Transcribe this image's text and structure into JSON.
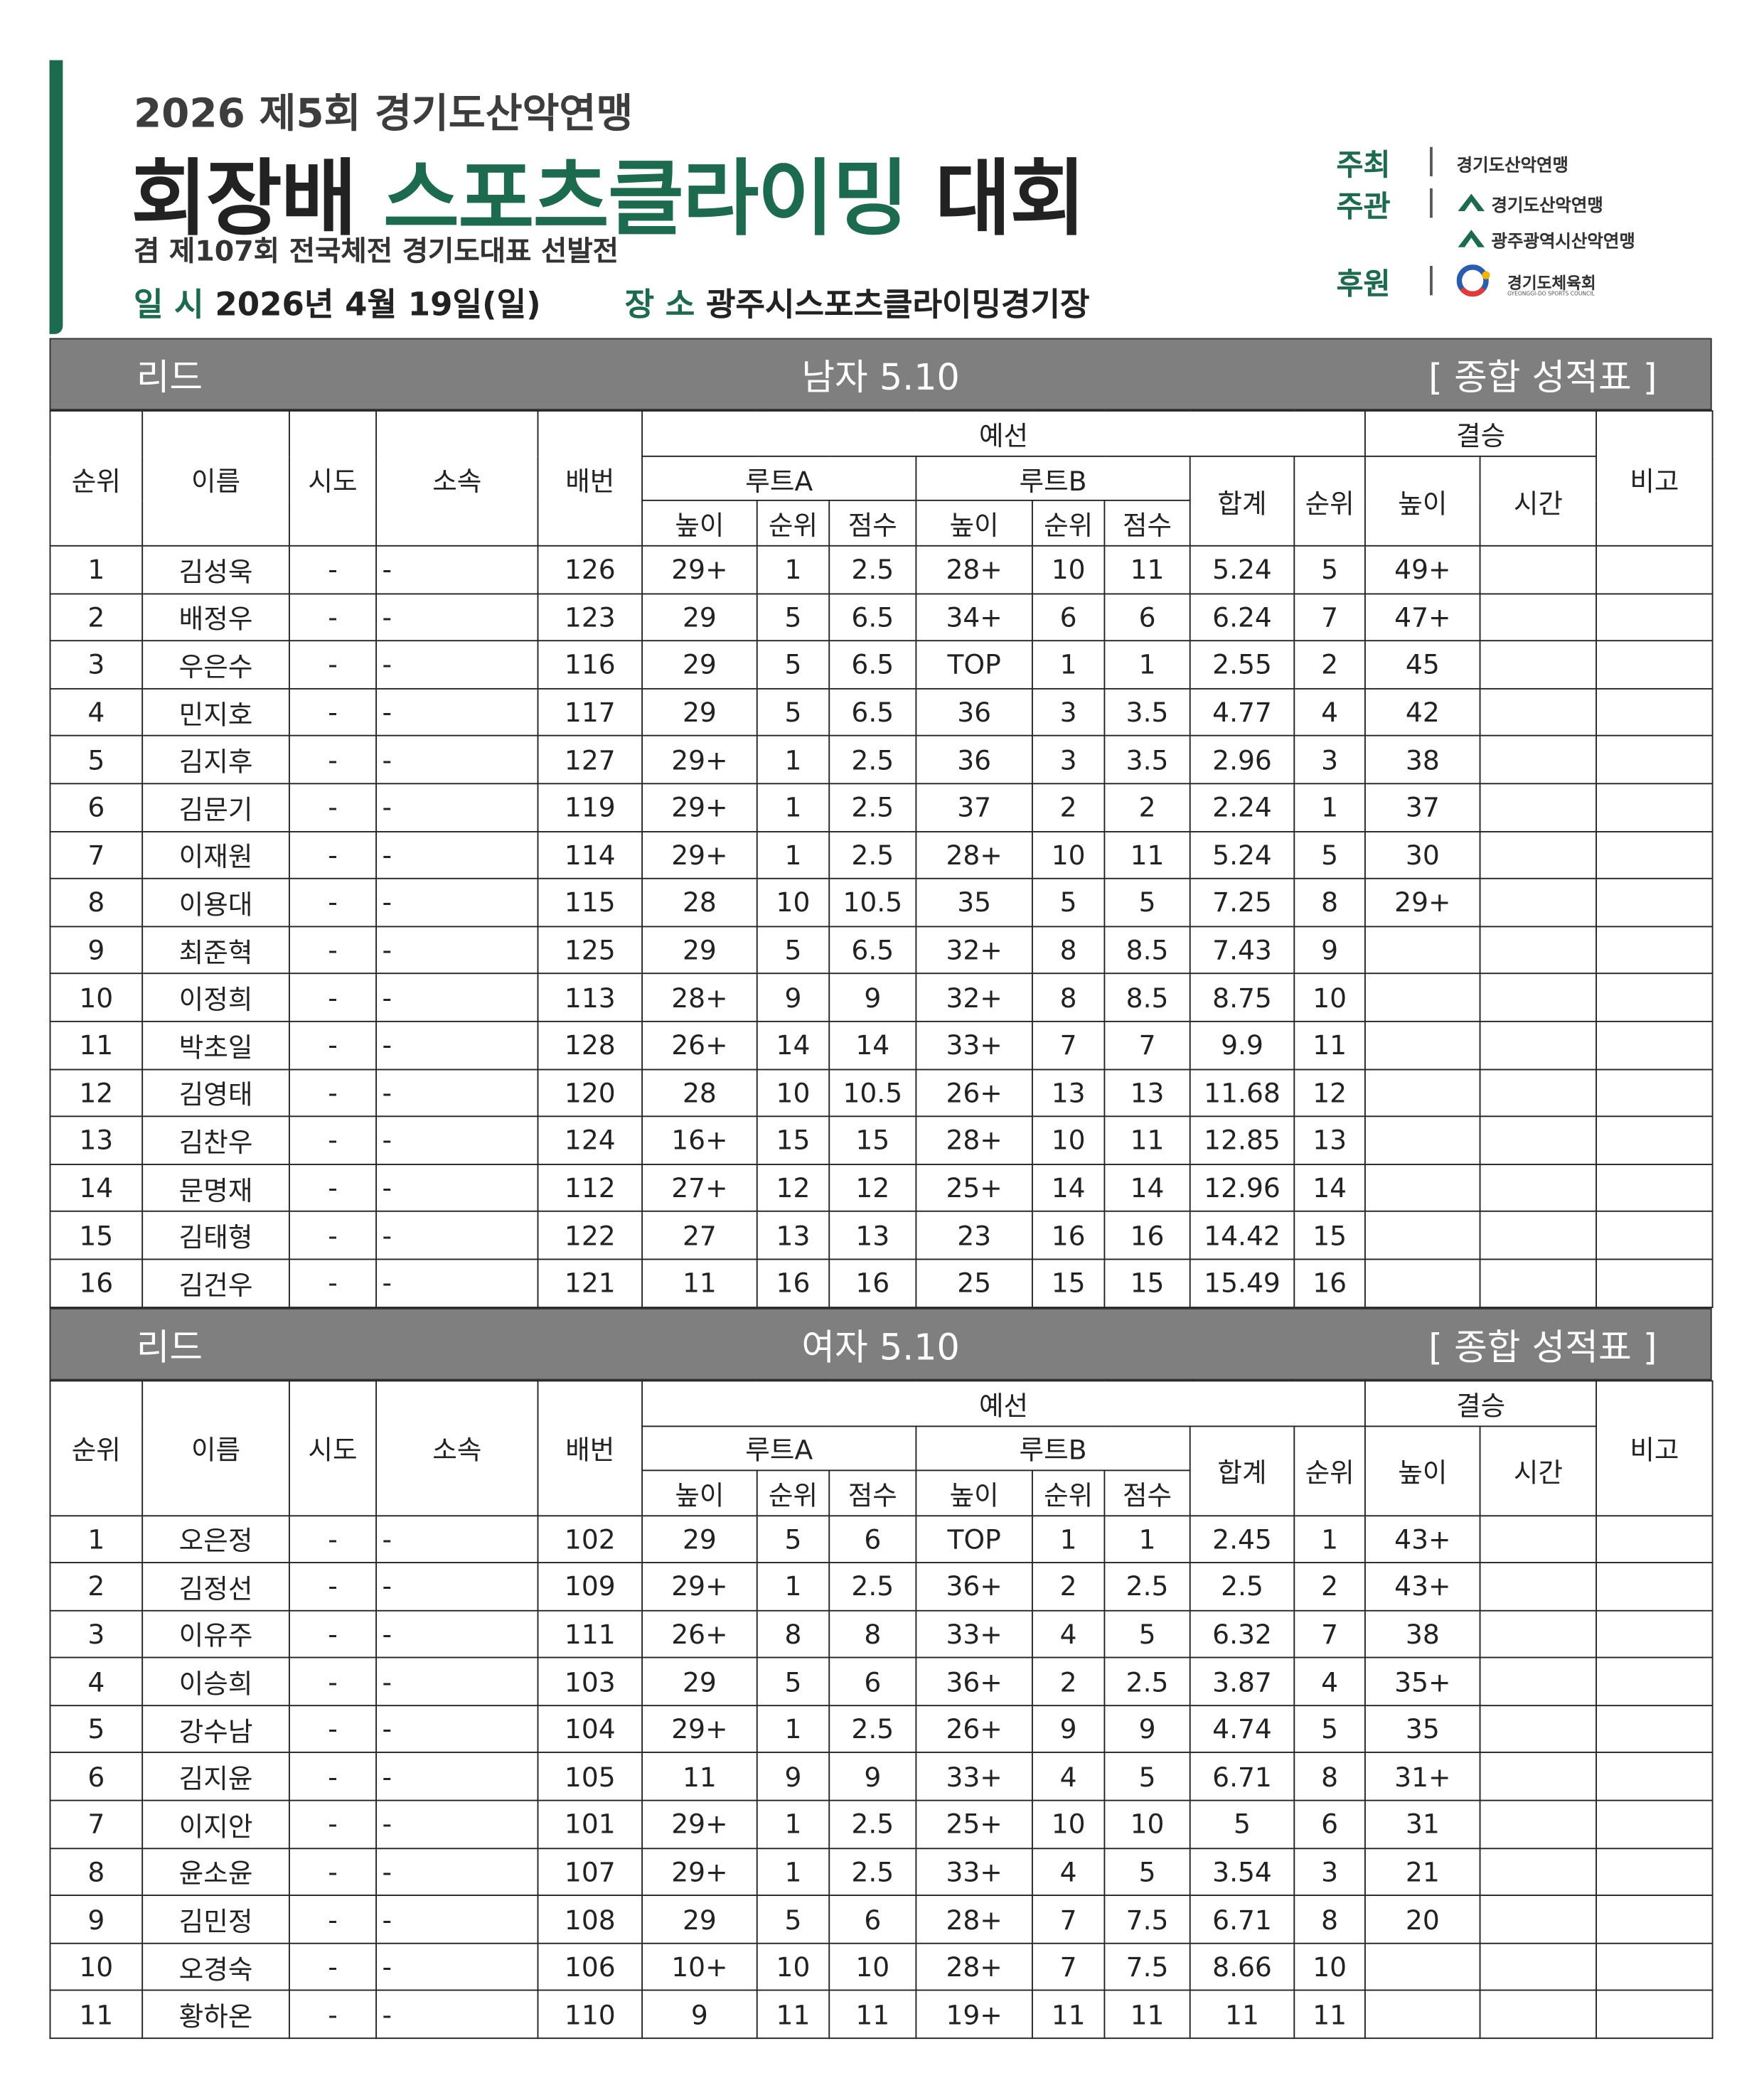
{
  "header": {
    "subtitle": "2026 제5회 경기도산악연맹",
    "title_parts": [
      "회장배",
      "스포츠클라이밍",
      "대회"
    ],
    "tagline": "겸 제107회 전국체전 경기도대표 선발전",
    "date_label": "일 시",
    "date": "2026년 4월 19일(일)",
    "venue_label": "장 소",
    "venue": "광주시스포츠클라이밍경기장"
  },
  "sponsors": [
    {
      "role": "주최",
      "orgs": [
        "경기도산악연맹"
      ]
    },
    {
      "role": "주관",
      "orgs": [
        "경기도산악연맹",
        "광주광역시산악연맹"
      ]
    },
    {
      "role": "후원",
      "orgs": [
        "경기도체육회"
      ],
      "org_subtext": "GYEONGGI-DO SPORTS COUNCIL"
    }
  ],
  "sections": [
    {
      "discipline": "리드",
      "category": "남자 5.10",
      "label": "[ 종합 성적표 ]",
      "header_row1": [
        "순위",
        "이름",
        "시도",
        "소속",
        "배번",
        "예선",
        "결승",
        "비고"
      ],
      "header_row2": [
        "루트A",
        "루트B",
        "합계",
        "순위",
        "높이",
        "시간"
      ],
      "header_row3": [
        "높이",
        "순위",
        "점수",
        "높이",
        "순위",
        "점수"
      ],
      "rows": [
        [
          "1",
          "김성욱",
          "-",
          "-",
          "126",
          "29+",
          "1",
          "2.5",
          "28+",
          "10",
          "11",
          "5.24",
          "5",
          "49+",
          null,
          null
        ],
        [
          "2",
          "배정우",
          "-",
          "-",
          "123",
          "29",
          "5",
          "6.5",
          "34+",
          "6",
          "6",
          "6.24",
          "7",
          "47+",
          null,
          null
        ],
        [
          "3",
          "우은수",
          "-",
          "-",
          "116",
          "29",
          "5",
          "6.5",
          "TOP",
          "1",
          "1",
          "2.55",
          "2",
          "45",
          null,
          null
        ],
        [
          "4",
          "민지호",
          "-",
          "-",
          "117",
          "29",
          "5",
          "6.5",
          "36",
          "3",
          "3.5",
          "4.77",
          "4",
          "42",
          null,
          null
        ],
        [
          "5",
          "김지후",
          "-",
          "-",
          "127",
          "29+",
          "1",
          "2.5",
          "36",
          "3",
          "3.5",
          "2.96",
          "3",
          "38",
          null,
          null
        ],
        [
          "6",
          "김문기",
          "-",
          "-",
          "119",
          "29+",
          "1",
          "2.5",
          "37",
          "2",
          "2",
          "2.24",
          "1",
          "37",
          null,
          null
        ],
        [
          "7",
          "이재원",
          "-",
          "-",
          "114",
          "29+",
          "1",
          "2.5",
          "28+",
          "10",
          "11",
          "5.24",
          "5",
          "30",
          null,
          null
        ],
        [
          "8",
          "이용대",
          "-",
          "-",
          "115",
          "28",
          "10",
          "10.5",
          "35",
          "5",
          "5",
          "7.25",
          "8",
          "29+",
          null,
          null
        ],
        [
          "9",
          "최준혁",
          "-",
          "-",
          "125",
          "29",
          "5",
          "6.5",
          "32+",
          "8",
          "8.5",
          "7.43",
          "9",
          null,
          null,
          null
        ],
        [
          "10",
          "이정희",
          "-",
          "-",
          "113",
          "28+",
          "9",
          "9",
          "32+",
          "8",
          "8.5",
          "8.75",
          "10",
          null,
          null,
          null
        ],
        [
          "11",
          "박초일",
          "-",
          "-",
          "128",
          "26+",
          "14",
          "14",
          "33+",
          "7",
          "7",
          "9.9",
          "11",
          null,
          null,
          null
        ],
        [
          "12",
          "김영태",
          "-",
          "-",
          "120",
          "28",
          "10",
          "10.5",
          "26+",
          "13",
          "13",
          "11.68",
          "12",
          null,
          null,
          null
        ],
        [
          "13",
          "김찬우",
          "-",
          "-",
          "124",
          "16+",
          "15",
          "15",
          "28+",
          "10",
          "11",
          "12.85",
          "13",
          null,
          null,
          null
        ],
        [
          "14",
          "문명재",
          "-",
          "-",
          "112",
          "27+",
          "12",
          "12",
          "25+",
          "14",
          "14",
          "12.96",
          "14",
          null,
          null,
          null
        ],
        [
          "15",
          "김태형",
          "-",
          "-",
          "122",
          "27",
          "13",
          "13",
          "23",
          "16",
          "16",
          "14.42",
          "15",
          null,
          null,
          null
        ],
        [
          "16",
          "김건우",
          "-",
          "-",
          "121",
          "11",
          "16",
          "16",
          "25",
          "15",
          "15",
          "15.49",
          "16",
          null,
          null,
          null
        ]
      ]
    },
    {
      "discipline": "리드",
      "category": "여자 5.10",
      "label": "[ 종합 성적표 ]",
      "header_row1": [
        "순위",
        "이름",
        "시도",
        "소속",
        "배번",
        "예선",
        "결승",
        "비고"
      ],
      "header_row2": [
        "루트A",
        "루트B",
        "합계",
        "순위",
        "높이",
        "시간"
      ],
      "header_row3": [
        "높이",
        "순위",
        "점수",
        "높이",
        "순위",
        "점수"
      ],
      "rows": [
        [
          "1",
          "오은정",
          "-",
          "-",
          "102",
          "29",
          "5",
          "6",
          "TOP",
          "1",
          "1",
          "2.45",
          "1",
          "43+",
          null,
          null
        ],
        [
          "2",
          "김정선",
          "-",
          "-",
          "109",
          "29+",
          "1",
          "2.5",
          "36+",
          "2",
          "2.5",
          "2.5",
          "2",
          "43+",
          null,
          null
        ],
        [
          "3",
          "이유주",
          "-",
          "-",
          "111",
          "26+",
          "8",
          "8",
          "33+",
          "4",
          "5",
          "6.32",
          "7",
          "38",
          null,
          null
        ],
        [
          "4",
          "이승희",
          "-",
          "-",
          "103",
          "29",
          "5",
          "6",
          "36+",
          "2",
          "2.5",
          "3.87",
          "4",
          "35+",
          null,
          null
        ],
        [
          "5",
          "강수남",
          "-",
          "-",
          "104",
          "29+",
          "1",
          "2.5",
          "26+",
          "9",
          "9",
          "4.74",
          "5",
          "35",
          null,
          null
        ],
        [
          "6",
          "김지윤",
          "-",
          "-",
          "105",
          "11",
          "9",
          "9",
          "33+",
          "4",
          "5",
          "6.71",
          "8",
          "31+",
          null,
          null
        ],
        [
          "7",
          "이지안",
          "-",
          "-",
          "101",
          "29+",
          "1",
          "2.5",
          "25+",
          "10",
          "10",
          "5",
          "6",
          "31",
          null,
          null
        ],
        [
          "8",
          "윤소윤",
          "-",
          "-",
          "107",
          "29+",
          "1",
          "2.5",
          "33+",
          "4",
          "5",
          "3.54",
          "3",
          "21",
          null,
          null
        ],
        [
          "9",
          "김민정",
          "-",
          "-",
          "108",
          "29",
          "5",
          "6",
          "28+",
          "7",
          "7.5",
          "6.71",
          "8",
          "20",
          null,
          null
        ],
        [
          "10",
          "오경숙",
          "-",
          "-",
          "106",
          "10+",
          "10",
          "10",
          "28+",
          "7",
          "7.5",
          "8.66",
          "10",
          null,
          null,
          null
        ],
        [
          "11",
          "황하온",
          "-",
          "-",
          "110",
          "9",
          "11",
          "11",
          "19+",
          "11",
          "11",
          "11",
          "11",
          null,
          null,
          null
        ]
      ]
    }
  ]
}
